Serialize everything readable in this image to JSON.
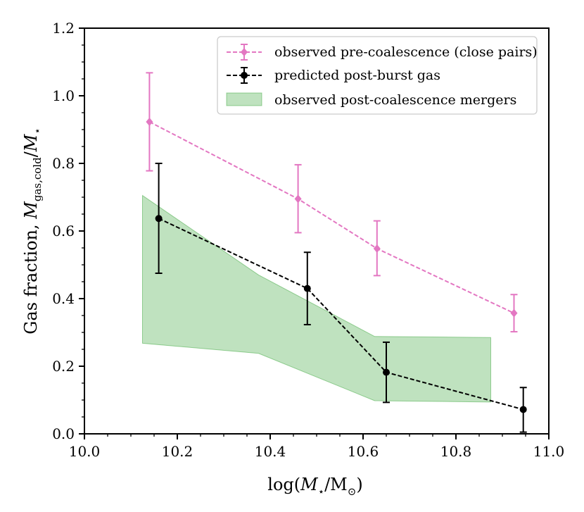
{
  "chart_data": {
    "type": "line",
    "xlabel": "log(M⋆/M⊙)",
    "ylabel": "Gas fraction, Mgas,cold/M⋆",
    "xlim": [
      10.0,
      11.0
    ],
    "ylim": [
      0.0,
      1.2
    ],
    "x_ticks": [
      10.0,
      10.2,
      10.4,
      10.6,
      10.8,
      11.0
    ],
    "x_tick_labels": [
      "10.0",
      "10.2",
      "10.4",
      "10.6",
      "10.8",
      "11.0"
    ],
    "y_ticks": [
      0.0,
      0.2,
      0.4,
      0.6,
      0.8,
      1.0,
      1.2
    ],
    "y_tick_labels": [
      "0.0",
      "0.2",
      "0.4",
      "0.6",
      "0.8",
      "1.0",
      "1.2"
    ],
    "grid": false,
    "legend_position": "top-right",
    "series": [
      {
        "name": "observed pre-coalescence (close pairs)",
        "color": "#e377c2",
        "style": "dashed",
        "marker": "diamond",
        "x": [
          10.14,
          10.46,
          10.63,
          10.925
        ],
        "y": [
          0.923,
          0.695,
          0.548,
          0.357
        ],
        "yerr_low": [
          0.778,
          0.595,
          0.468,
          0.302
        ],
        "yerr_high": [
          1.068,
          0.796,
          0.63,
          0.412
        ]
      },
      {
        "name": "predicted post-burst gas",
        "color": "#000000",
        "style": "dashed",
        "marker": "circle",
        "x": [
          10.16,
          10.48,
          10.65,
          10.945
        ],
        "y": [
          0.637,
          0.43,
          0.182,
          0.072
        ],
        "yerr_low": [
          0.475,
          0.323,
          0.093,
          0.005
        ],
        "yerr_high": [
          0.8,
          0.537,
          0.271,
          0.137
        ]
      }
    ],
    "band": {
      "name": "observed post-coalescence mergers",
      "color": "#2ca02c",
      "x": [
        10.125,
        10.375,
        10.625,
        10.875
      ],
      "upper": [
        0.705,
        0.47,
        0.288,
        0.285
      ],
      "lower": [
        0.268,
        0.238,
        0.098,
        0.094
      ]
    }
  }
}
